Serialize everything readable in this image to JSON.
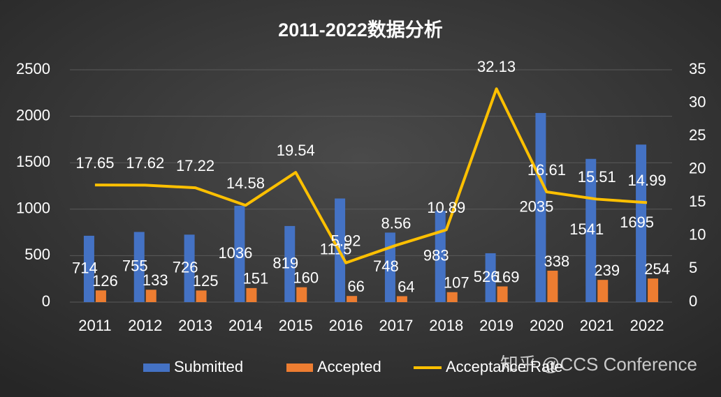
{
  "chart_data": {
    "type": "bar-line",
    "title": "2011-2022数据分析",
    "categories": [
      "2011",
      "2012",
      "2013",
      "2014",
      "2015",
      "2016",
      "2017",
      "2018",
      "2019",
      "2020",
      "2021",
      "2022"
    ],
    "series": [
      {
        "name": "Submitted",
        "type": "bar",
        "color": "#4472c4",
        "values": [
          714,
          755,
          726,
          1036,
          819,
          1115,
          748,
          983,
          526,
          2035,
          1541,
          1695
        ]
      },
      {
        "name": "Accepted",
        "type": "bar",
        "color": "#ed7d31",
        "values": [
          126,
          133,
          125,
          151,
          160,
          66,
          64,
          107,
          169,
          338,
          239,
          254
        ]
      },
      {
        "name": "Acceptance Rate",
        "type": "line",
        "axis": "y2",
        "color": "#ffc000",
        "values": [
          17.65,
          17.62,
          17.22,
          14.58,
          19.54,
          5.92,
          8.56,
          10.89,
          32.13,
          16.61,
          15.51,
          14.99
        ]
      }
    ],
    "ylim": [
      0,
      2500
    ],
    "yticks": [
      0,
      500,
      1000,
      1500,
      2000,
      2500
    ],
    "y2lim": [
      0,
      35
    ],
    "y2ticks": [
      0,
      5,
      10,
      15,
      20,
      25,
      30,
      35
    ],
    "grid": true,
    "data_labels": true,
    "legend": "bottom",
    "watermark": "知乎 @CCS Conference"
  }
}
